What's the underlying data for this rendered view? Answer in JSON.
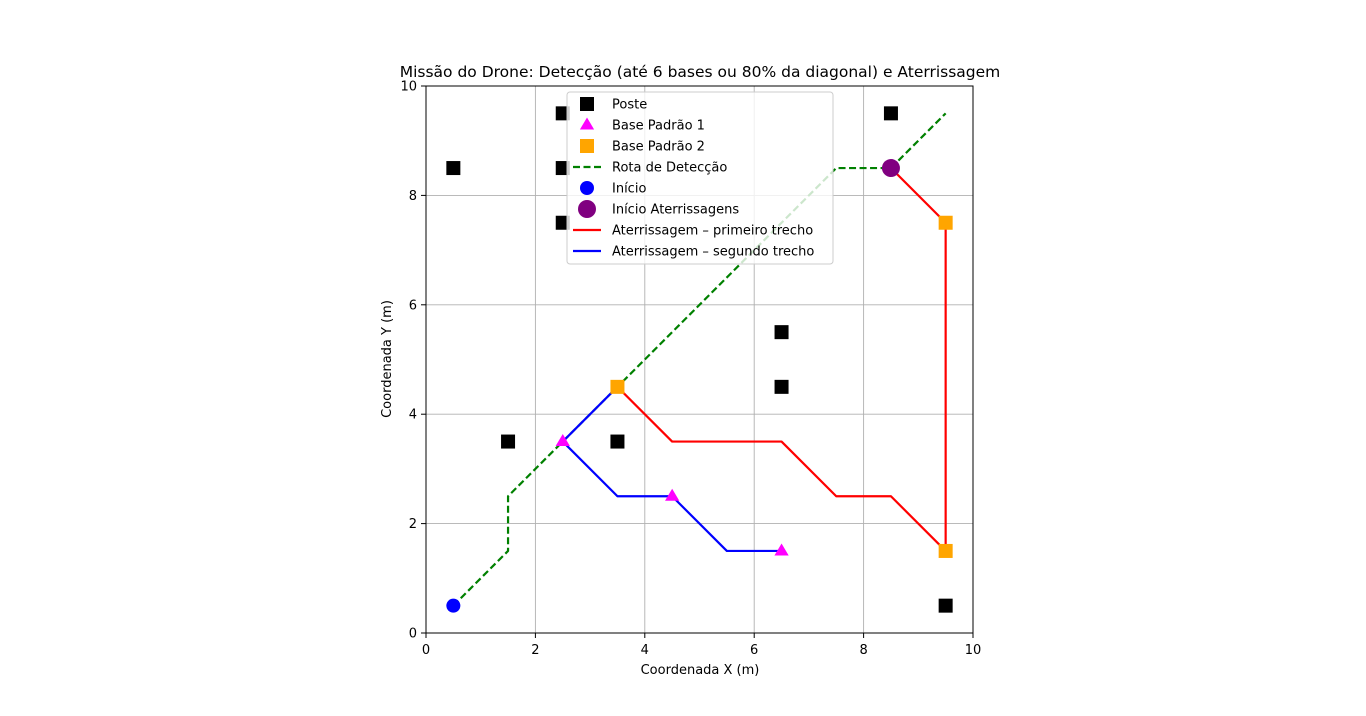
{
  "chart_data": {
    "type": "scatter",
    "title": "Missão do Drone: Detecção (até 6 bases ou 80% da diagonal) e Aterrissagem",
    "xlabel": "Coordenada X (m)",
    "ylabel": "Coordenada Y (m)",
    "xlim": [
      0,
      10
    ],
    "ylim": [
      0,
      10
    ],
    "xticks": [
      0,
      2,
      4,
      6,
      8,
      10
    ],
    "yticks": [
      0,
      2,
      4,
      6,
      8,
      10
    ],
    "x_tick_labels": [
      "0",
      "2",
      "4",
      "6",
      "8",
      "10"
    ],
    "y_tick_labels": [
      "0",
      "2",
      "4",
      "6",
      "8",
      "10"
    ],
    "grid": true,
    "legend_position": "top-center",
    "series": [
      {
        "name": "Poste",
        "kind": "marker",
        "marker": "square",
        "color": "#000000",
        "points": [
          [
            0.5,
            8.5
          ],
          [
            2.5,
            9.5
          ],
          [
            2.5,
            8.5
          ],
          [
            2.5,
            7.5
          ],
          [
            8.5,
            9.5
          ],
          [
            6.5,
            5.5
          ],
          [
            6.5,
            4.5
          ],
          [
            1.5,
            3.5
          ],
          [
            3.5,
            3.5
          ],
          [
            9.5,
            0.5
          ]
        ]
      },
      {
        "name": "Base Padrão 1",
        "kind": "marker",
        "marker": "triangle",
        "color": "#ff00ff",
        "points": [
          [
            2.5,
            3.5
          ],
          [
            4.5,
            2.5
          ],
          [
            6.5,
            1.5
          ]
        ]
      },
      {
        "name": "Base Padrão 2",
        "kind": "marker",
        "marker": "square",
        "color": "#ffa500",
        "points": [
          [
            3.5,
            4.5
          ],
          [
            9.5,
            7.5
          ],
          [
            9.5,
            1.5
          ]
        ]
      },
      {
        "name": "Rota de Detecção",
        "kind": "line",
        "dashed": true,
        "color": "#008000",
        "points": [
          [
            0.5,
            0.5
          ],
          [
            1.5,
            1.5
          ],
          [
            1.5,
            2.5
          ],
          [
            2.5,
            3.5
          ],
          [
            3.5,
            4.5
          ],
          [
            7.5,
            8.5
          ],
          [
            8.5,
            8.5
          ],
          [
            9.5,
            9.5
          ]
        ]
      },
      {
        "name": "Início",
        "kind": "marker",
        "marker": "circle",
        "color": "#0000ff",
        "points": [
          [
            0.5,
            0.5
          ]
        ]
      },
      {
        "name": "Início Aterrissagens",
        "kind": "marker",
        "marker": "circle-large",
        "color": "#800080",
        "points": [
          [
            8.5,
            8.5
          ]
        ]
      },
      {
        "name": "Aterrissagem – primeiro trecho",
        "kind": "line",
        "dashed": false,
        "color": "#ff0000",
        "points": [
          [
            8.5,
            8.5
          ],
          [
            9.5,
            7.5
          ],
          [
            9.5,
            1.5
          ],
          [
            8.5,
            2.5
          ],
          [
            7.5,
            2.5
          ],
          [
            6.5,
            3.5
          ],
          [
            4.5,
            3.5
          ],
          [
            3.5,
            4.5
          ]
        ]
      },
      {
        "name": "Aterrissagem – segundo trecho",
        "kind": "line",
        "dashed": false,
        "color": "#0000ff",
        "points": [
          [
            3.5,
            4.5
          ],
          [
            2.5,
            3.5
          ],
          [
            3.5,
            2.5
          ],
          [
            4.5,
            2.5
          ],
          [
            5.5,
            1.5
          ],
          [
            6.5,
            1.5
          ]
        ]
      }
    ],
    "draw_order": [
      "Rota de Detecção",
      "Aterrissagem – primeiro trecho",
      "Aterrissagem – segundo trecho",
      "Poste",
      "Base Padrão 1",
      "Base Padrão 2",
      "Início",
      "Início Aterrissagens"
    ]
  }
}
